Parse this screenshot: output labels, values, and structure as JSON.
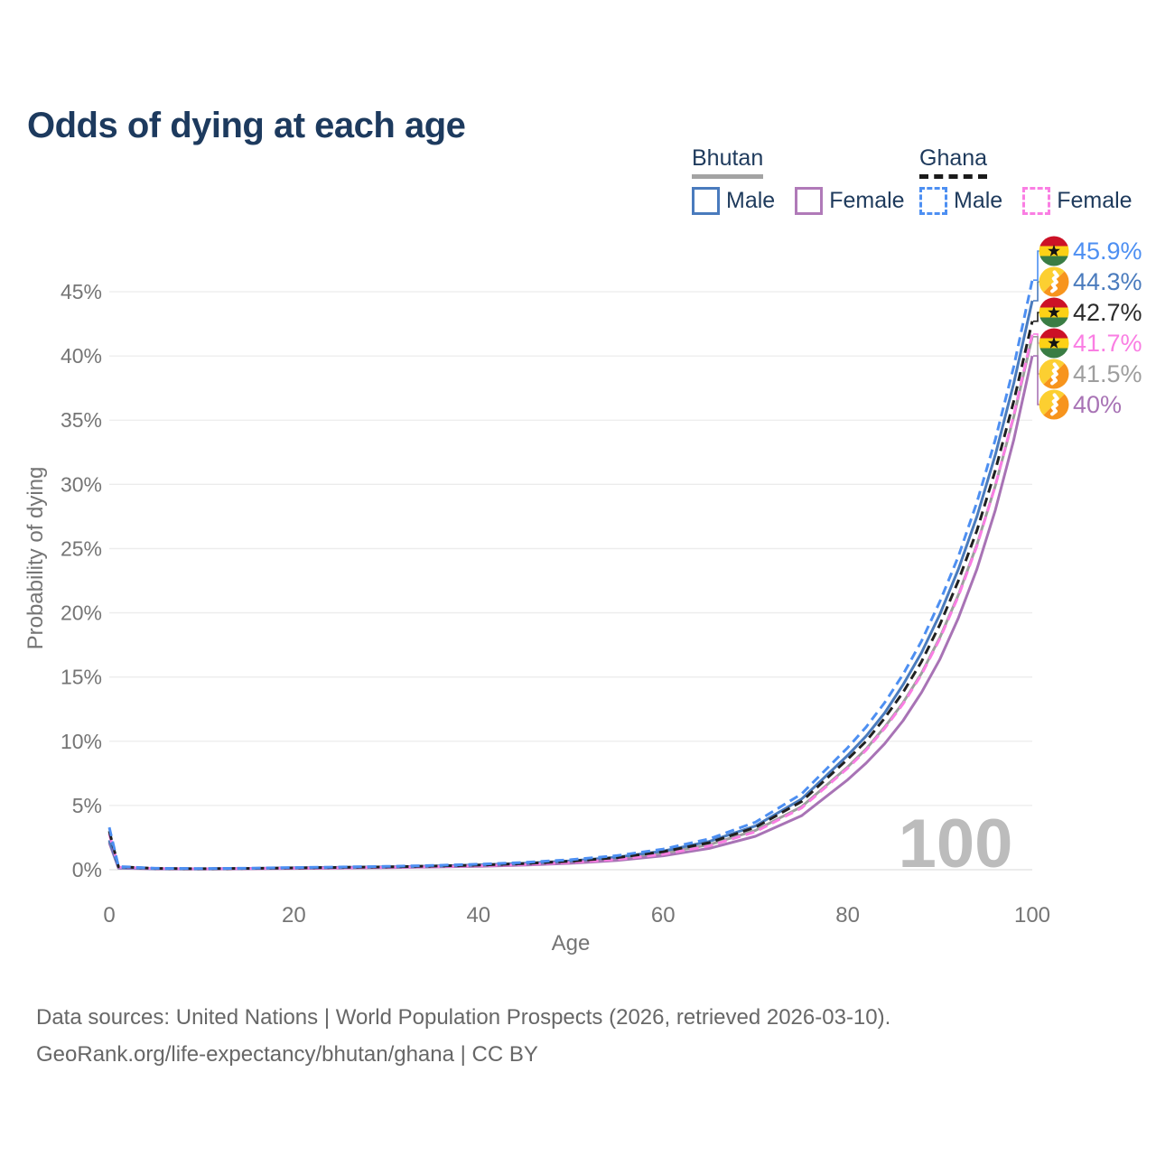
{
  "title": "Odds of dying at each age",
  "legend": {
    "groups": [
      {
        "label": "Bhutan",
        "line_style": "solid",
        "line_color": "#a3a3a3",
        "items": [
          {
            "label": "Male",
            "color": "#4a7bbd",
            "dashed": false
          },
          {
            "label": "Female",
            "color": "#b07ab8",
            "dashed": false
          }
        ]
      },
      {
        "label": "Ghana",
        "line_style": "dashed",
        "line_color": "#1a1a1a",
        "items": [
          {
            "label": "Male",
            "color": "#4d8ff2",
            "dashed": true
          },
          {
            "label": "Female",
            "color": "#fa7ee3",
            "dashed": true
          }
        ]
      }
    ]
  },
  "watermark": "100",
  "footer": {
    "line1": "Data sources: United Nations | World Population Prospects (2026, retrieved 2026-03-10).",
    "line2": "GeoRank.org/life-expectancy/bhutan/ghana | CC BY"
  },
  "chart_data": {
    "type": "line",
    "title": "Odds of dying at each age",
    "xlabel": "Age",
    "ylabel": "Probability of dying",
    "xlim": [
      0,
      100
    ],
    "ylim": [
      0,
      48
    ],
    "x_ticks": [
      0,
      20,
      40,
      60,
      80,
      100
    ],
    "y_ticks": [
      0,
      5,
      10,
      15,
      20,
      25,
      30,
      35,
      40,
      45
    ],
    "y_tick_suffix": "%",
    "grid": true,
    "legend_position": "top-right",
    "x": [
      0,
      1,
      5,
      10,
      15,
      20,
      25,
      30,
      35,
      40,
      45,
      50,
      55,
      60,
      65,
      70,
      75,
      80,
      82,
      84,
      86,
      88,
      90,
      92,
      94,
      96,
      98,
      100
    ],
    "series": [
      {
        "name": "Ghana Male",
        "color": "#4d8ff2",
        "dash": true,
        "flag": "ghana",
        "end_label": "45.9%",
        "end_value": 45.9,
        "label_color": "#4d8ff2",
        "values": [
          3.3,
          0.25,
          0.11,
          0.09,
          0.12,
          0.17,
          0.21,
          0.26,
          0.33,
          0.43,
          0.57,
          0.78,
          1.1,
          1.6,
          2.4,
          3.7,
          5.9,
          9.5,
          11.1,
          13.0,
          15.2,
          17.8,
          20.9,
          24.4,
          28.6,
          33.5,
          39.2,
          45.9
        ]
      },
      {
        "name": "Bhutan Male",
        "color": "#4a7bbd",
        "dash": false,
        "flag": "bhutan",
        "end_label": "44.3%",
        "end_value": 44.3,
        "label_color": "#4a7bbd",
        "values": [
          2.3,
          0.16,
          0.08,
          0.07,
          0.1,
          0.15,
          0.18,
          0.22,
          0.28,
          0.37,
          0.5,
          0.69,
          0.98,
          1.45,
          2.2,
          3.4,
          5.5,
          8.9,
          10.4,
          12.2,
          14.4,
          16.9,
          19.9,
          23.4,
          27.5,
          32.3,
          37.9,
          44.3
        ]
      },
      {
        "name": "Ghana",
        "color": "#202020",
        "dash": true,
        "flag": "ghana",
        "end_label": "42.7%",
        "end_value": 42.7,
        "label_color": "#2b2b2b",
        "values": [
          3.0,
          0.23,
          0.1,
          0.08,
          0.1,
          0.14,
          0.18,
          0.22,
          0.28,
          0.36,
          0.48,
          0.66,
          0.94,
          1.4,
          2.1,
          3.3,
          5.3,
          8.6,
          10.0,
          11.8,
          13.8,
          16.2,
          19.1,
          22.5,
          26.4,
          31.1,
          36.5,
          42.7
        ]
      },
      {
        "name": "Ghana Female",
        "color": "#fa7ee3",
        "dash": true,
        "flag": "ghana",
        "end_label": "41.7%",
        "end_value": 41.7,
        "label_color": "#fa7ee3",
        "values": [
          2.8,
          0.2,
          0.09,
          0.07,
          0.09,
          0.12,
          0.15,
          0.19,
          0.24,
          0.31,
          0.41,
          0.56,
          0.8,
          1.2,
          1.85,
          2.95,
          4.8,
          7.9,
          9.3,
          11.0,
          12.9,
          15.2,
          18.0,
          21.3,
          25.2,
          29.9,
          35.4,
          41.7
        ]
      },
      {
        "name": "Bhutan",
        "color": "#9e9e9e",
        "dash": false,
        "flag": "bhutan",
        "end_label": "41.5%",
        "end_value": 41.5,
        "label_color": "#9e9e9e",
        "values": [
          2.2,
          0.15,
          0.07,
          0.06,
          0.09,
          0.13,
          0.16,
          0.2,
          0.25,
          0.33,
          0.44,
          0.6,
          0.86,
          1.28,
          1.95,
          3.05,
          4.9,
          8.0,
          9.4,
          11.1,
          13.0,
          15.3,
          18.1,
          21.4,
          25.3,
          29.9,
          35.3,
          41.5
        ]
      },
      {
        "name": "Bhutan Female",
        "color": "#a873b5",
        "dash": false,
        "flag": "bhutan",
        "end_label": "40%",
        "end_value": 40,
        "label_color": "#a873b5",
        "values": [
          2.1,
          0.13,
          0.06,
          0.05,
          0.07,
          0.1,
          0.13,
          0.16,
          0.21,
          0.27,
          0.36,
          0.5,
          0.72,
          1.08,
          1.66,
          2.6,
          4.2,
          7.0,
          8.3,
          9.8,
          11.6,
          13.8,
          16.4,
          19.6,
          23.4,
          28.0,
          33.5,
          40.0
        ]
      }
    ],
    "flag_colors": {
      "ghana_red": "#cc1126",
      "ghana_gold": "#fcd116",
      "ghana_green": "#3a7d44",
      "ghana_star": "#141414",
      "bhutan_yellow": "#fccf31",
      "bhutan_orange": "#f7941d",
      "bhutan_dragon": "#ffffff"
    },
    "style": {
      "grid_color": "#ececec",
      "zero_line_color": "#e0e0e0",
      "tick_color": "#757575",
      "watermark_color": "#bcbcbc"
    }
  }
}
